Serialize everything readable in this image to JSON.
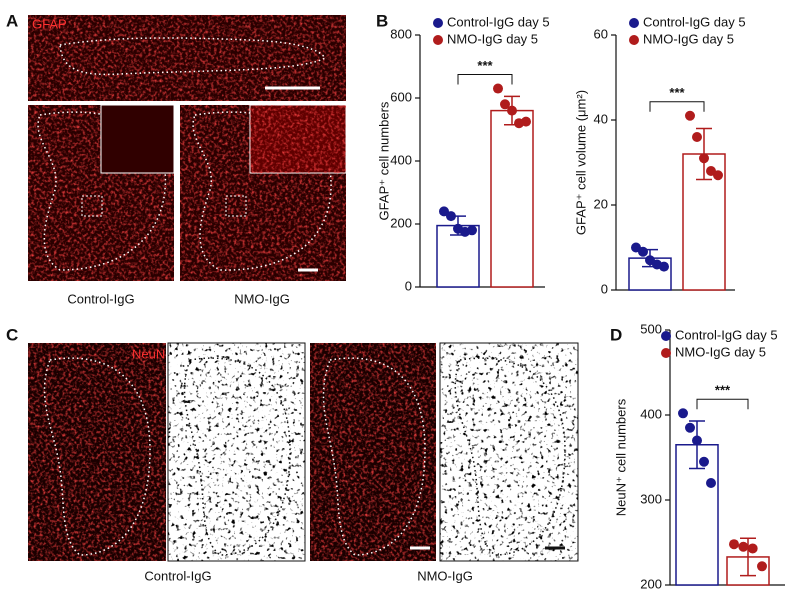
{
  "figure": {
    "panels": [
      "A",
      "B",
      "C",
      "D"
    ],
    "image_labels": {
      "gfap": "GFAP",
      "neun": "NeuN"
    },
    "captions_a": [
      "Control-IgG",
      "NMO-IgG"
    ],
    "captions_c": [
      "Control-IgG",
      "NMO-IgG"
    ]
  },
  "chart_data": [
    {
      "type": "bar",
      "y_label": "GFAP⁺ cell numbers",
      "ylim": [
        0,
        800
      ],
      "yticks": [
        0,
        200,
        400,
        600,
        800
      ],
      "annotation": "***",
      "series": [
        {
          "name": "Control-IgG day 5",
          "color": "#1a1a8c",
          "values": [
            195
          ],
          "errors": [
            30
          ],
          "points": [
            240,
            225,
            185,
            175,
            180
          ]
        },
        {
          "name": "NMO-IgG day 5",
          "color": "#b01c1c",
          "values": [
            560
          ],
          "errors": [
            45
          ],
          "points": [
            630,
            580,
            560,
            520,
            525
          ]
        }
      ]
    },
    {
      "type": "bar",
      "y_label": "GFAP⁺ cell volume (μm²)",
      "ylim": [
        0,
        60
      ],
      "yticks": [
        0,
        20,
        40,
        60
      ],
      "annotation": "***",
      "series": [
        {
          "name": "Control-IgG day 5",
          "color": "#1a1a8c",
          "values": [
            7.5
          ],
          "errors": [
            2
          ],
          "points": [
            10,
            9,
            7,
            6,
            5.5
          ]
        },
        {
          "name": "NMO-IgG day 5",
          "color": "#b01c1c",
          "values": [
            32
          ],
          "errors": [
            6
          ],
          "points": [
            41,
            36,
            31,
            28,
            27
          ]
        }
      ]
    },
    {
      "type": "bar",
      "y_label": "NeuN⁺ cell numbers",
      "ylim": [
        200,
        500
      ],
      "yticks": [
        200,
        300,
        400,
        500
      ],
      "annotation": "***",
      "series": [
        {
          "name": "Control-IgG day 5",
          "color": "#1a1a8c",
          "values": [
            365
          ],
          "errors": [
            28
          ],
          "points": [
            402,
            385,
            370,
            345,
            320
          ]
        },
        {
          "name": "NMO-IgG day 5",
          "color": "#b01c1c",
          "values": [
            233
          ],
          "errors": [
            22
          ],
          "points": [
            248,
            245,
            243,
            222
          ]
        }
      ]
    }
  ]
}
